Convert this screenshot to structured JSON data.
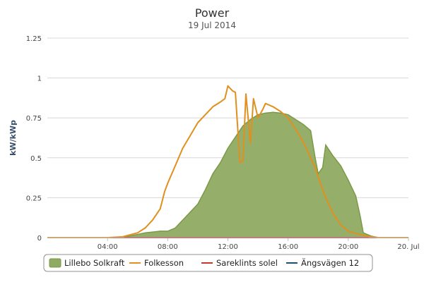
{
  "chart_data": {
    "type": "area",
    "title": "Power",
    "subtitle": "19 Jul 2014",
    "xlabel": "",
    "ylabel": "kW/kWp",
    "xlim": [
      0,
      24
    ],
    "ylim": [
      0,
      1.25
    ],
    "y_ticks": [
      0,
      0.25,
      0.5,
      0.75,
      1,
      1.25
    ],
    "y_tick_labels": [
      "0",
      "0.25",
      "0.5",
      "0.75",
      "1",
      "1.25"
    ],
    "x_ticks": [
      4,
      8,
      12,
      16,
      20,
      24
    ],
    "x_tick_labels": [
      "04:00",
      "08:00",
      "12:00",
      "16:00",
      "20:00",
      "20. Jul"
    ],
    "grid": true,
    "legend_position": "bottom-center",
    "series": [
      {
        "name": "Lillebo Solkraft",
        "type": "area",
        "color": "#7a9a47",
        "fill": "#8fab63",
        "x": [
          0,
          5.0,
          5.5,
          6.0,
          6.5,
          7.0,
          7.5,
          8.0,
          8.5,
          9.0,
          9.5,
          10.0,
          10.5,
          11.0,
          11.5,
          12.0,
          12.5,
          13.0,
          13.5,
          14.0,
          14.5,
          15.0,
          15.5,
          16.0,
          16.5,
          17.0,
          17.5,
          17.8,
          18.0,
          18.3,
          18.5,
          19.0,
          19.5,
          20.0,
          20.5,
          20.8,
          21.0,
          21.5,
          22.0,
          24.0
        ],
        "y": [
          0,
          0,
          0.01,
          0.02,
          0.03,
          0.035,
          0.04,
          0.04,
          0.06,
          0.11,
          0.16,
          0.21,
          0.3,
          0.4,
          0.47,
          0.56,
          0.63,
          0.7,
          0.74,
          0.77,
          0.78,
          0.785,
          0.78,
          0.77,
          0.74,
          0.71,
          0.67,
          0.5,
          0.4,
          0.44,
          0.58,
          0.51,
          0.45,
          0.36,
          0.26,
          0.13,
          0.03,
          0.01,
          0,
          0
        ]
      },
      {
        "name": "Folkesson",
        "type": "line",
        "color": "#e0901f",
        "x": [
          0,
          4.0,
          5.0,
          6.0,
          6.5,
          7.0,
          7.5,
          7.8,
          8.0,
          8.5,
          9.0,
          9.5,
          10.0,
          10.5,
          11.0,
          11.5,
          11.8,
          12.0,
          12.3,
          12.5,
          12.8,
          13.0,
          13.2,
          13.5,
          13.7,
          14.0,
          14.3,
          14.5,
          15.0,
          15.5,
          16.0,
          16.5,
          17.0,
          17.5,
          17.8,
          18.0,
          18.3,
          18.5,
          19.0,
          19.5,
          20.0,
          20.5,
          21.0,
          21.5,
          22.0,
          24.0
        ],
        "y": [
          0,
          0,
          0.005,
          0.03,
          0.06,
          0.11,
          0.18,
          0.29,
          0.34,
          0.45,
          0.56,
          0.64,
          0.72,
          0.77,
          0.82,
          0.85,
          0.87,
          0.95,
          0.92,
          0.91,
          0.47,
          0.48,
          0.9,
          0.59,
          0.87,
          0.75,
          0.8,
          0.84,
          0.82,
          0.79,
          0.75,
          0.68,
          0.6,
          0.5,
          0.44,
          0.38,
          0.3,
          0.25,
          0.15,
          0.08,
          0.04,
          0.025,
          0.015,
          0.005,
          0,
          0
        ]
      },
      {
        "name": "Sareklints solel",
        "type": "line",
        "color": "#c0392b",
        "x": [
          0,
          24
        ],
        "y": [
          0,
          0
        ]
      },
      {
        "name": "Ängsvägen 12",
        "type": "line",
        "color": "#1f4e6e",
        "x": [
          0,
          24
        ],
        "y": [
          0,
          0
        ]
      }
    ]
  }
}
